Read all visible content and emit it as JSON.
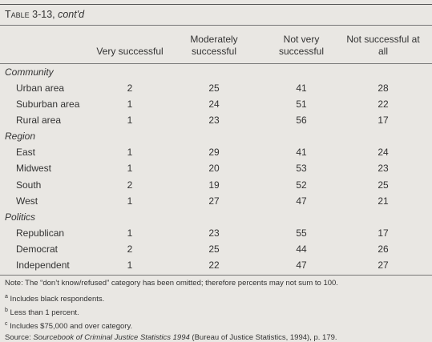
{
  "title": {
    "label": "Table 3-13,",
    "note": "cont'd"
  },
  "table": {
    "columns": [
      "Very successful",
      "Moderately successful",
      "Not very successful",
      "Not successful at all"
    ],
    "groups": [
      {
        "name": "Community",
        "rows": [
          {
            "label": "Urban area",
            "values": [
              2,
              25,
              41,
              28
            ]
          },
          {
            "label": "Suburban area",
            "values": [
              1,
              24,
              51,
              22
            ]
          },
          {
            "label": "Rural area",
            "values": [
              1,
              23,
              56,
              17
            ]
          }
        ]
      },
      {
        "name": "Region",
        "rows": [
          {
            "label": "East",
            "values": [
              1,
              29,
              41,
              24
            ]
          },
          {
            "label": "Midwest",
            "values": [
              1,
              20,
              53,
              23
            ]
          },
          {
            "label": "South",
            "values": [
              2,
              19,
              52,
              25
            ]
          },
          {
            "label": "West",
            "values": [
              1,
              27,
              47,
              21
            ]
          }
        ]
      },
      {
        "name": "Politics",
        "rows": [
          {
            "label": "Republican",
            "values": [
              1,
              23,
              55,
              17
            ]
          },
          {
            "label": "Democrat",
            "values": [
              2,
              25,
              44,
              26
            ]
          },
          {
            "label": "Independent",
            "values": [
              1,
              22,
              47,
              27
            ]
          }
        ]
      }
    ]
  },
  "note": "Note: The “don’t know/refused” category has been omitted; therefore percents may not sum to 100.",
  "footnotes": [
    {
      "marker": "a",
      "text": "Includes black respondents."
    },
    {
      "marker": "b",
      "text": "Less than 1 percent."
    },
    {
      "marker": "c",
      "text": "Includes $75,000 and over category."
    }
  ],
  "source": {
    "label": "Source:",
    "title": "Sourcebook of Criminal Justice Statistics 1994",
    "rest": "(Bureau of Justice Statistics, 1994), p. 179."
  }
}
